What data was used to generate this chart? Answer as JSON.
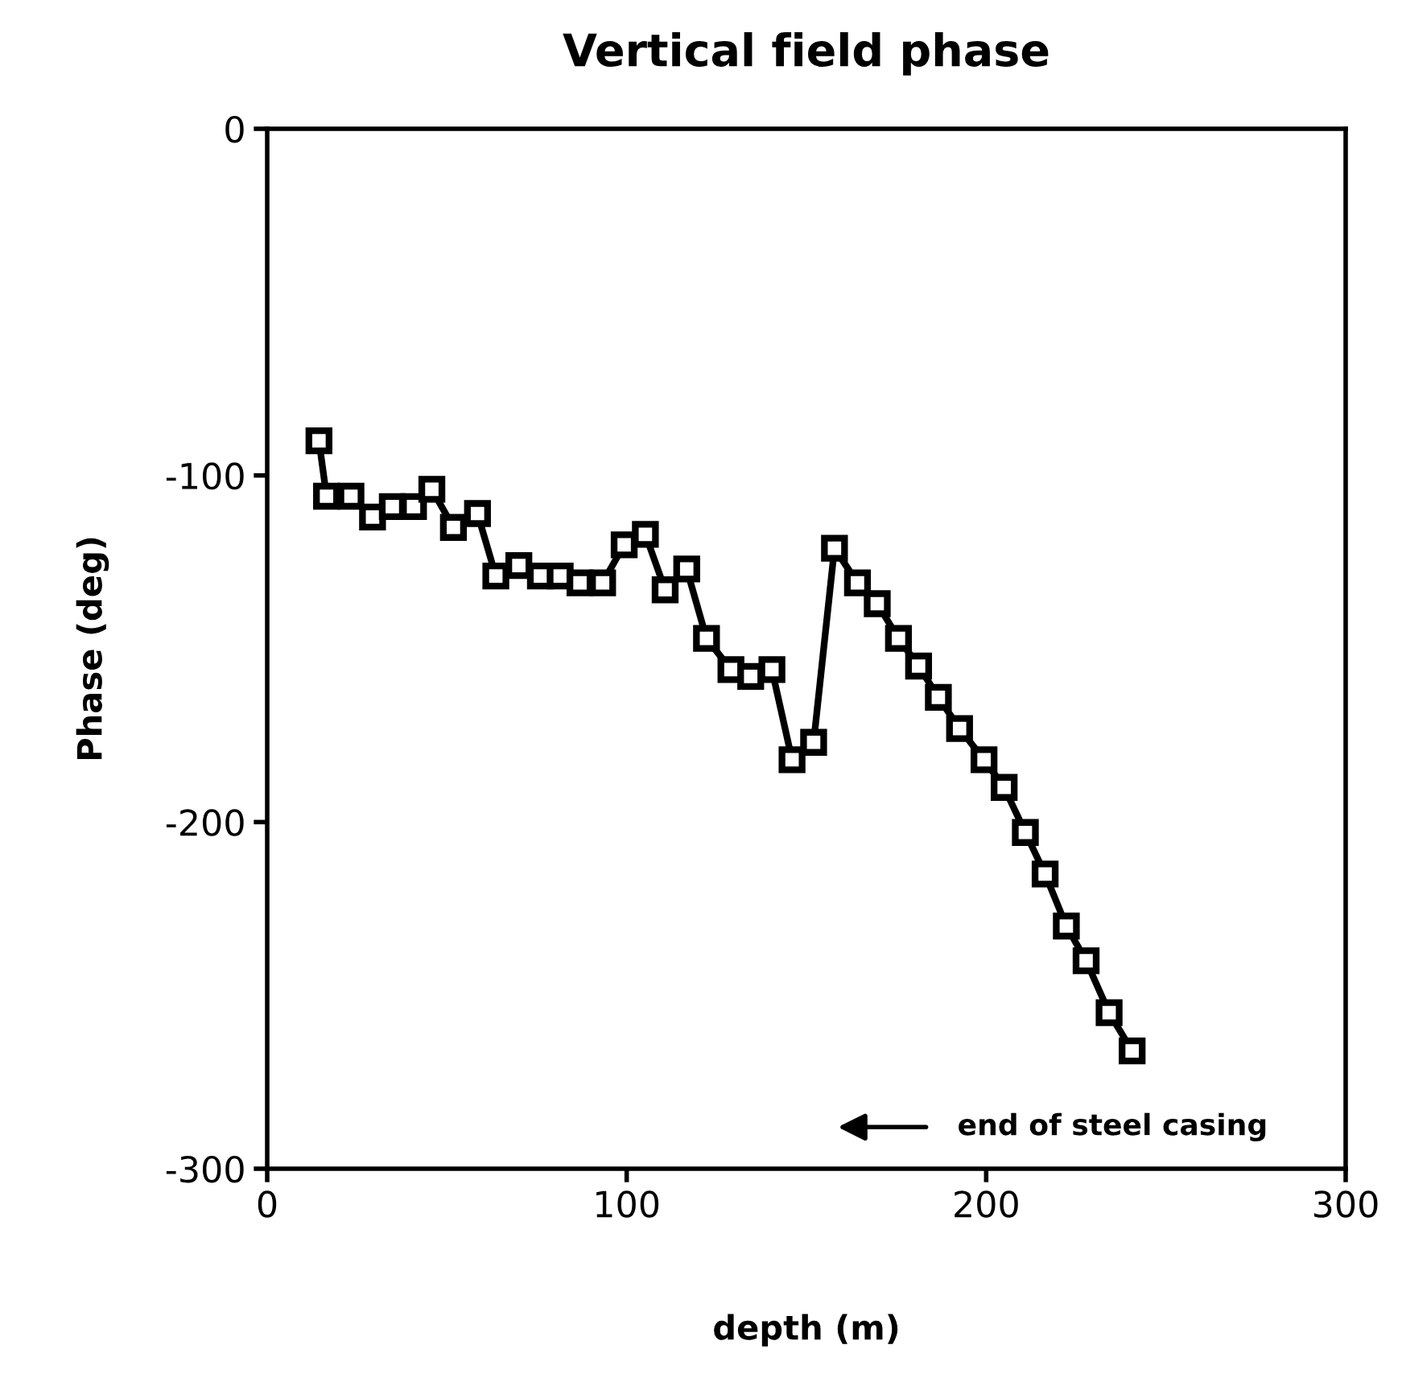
{
  "chart_data": {
    "type": "line",
    "title": "Vertical field phase",
    "xlabel": "depth (m)",
    "ylabel": "Phase (deg)",
    "x": [
      14.4,
      16.5,
      23.3,
      29.3,
      34.8,
      40.7,
      45.8,
      51.8,
      58.5,
      63.6,
      70,
      76,
      81.5,
      87,
      93.3,
      99.3,
      105.2,
      110.7,
      116.7,
      122.2,
      129,
      134.5,
      140.4,
      146,
      152,
      157.8,
      164.2,
      169.7,
      175.6,
      181.2,
      186.7,
      192.6,
      199.4,
      205,
      210.9,
      216.4,
      222.3,
      227.8,
      234.2,
      240.6
    ],
    "series": [
      {
        "color": "#000000",
        "values": [
          -90,
          -106,
          -106,
          -112,
          -109,
          -109,
          -104,
          -115,
          -111,
          -129,
          -126,
          -129,
          -129,
          -131,
          -131,
          -120,
          -117,
          -133,
          -127,
          -147,
          -156,
          -158,
          -156,
          -182,
          -177,
          -121,
          -131,
          -137,
          -147,
          -155,
          -164,
          -173,
          -182,
          -190,
          -203,
          -215,
          -230,
          -240,
          -255,
          -266
        ]
      }
    ],
    "xlim": [
      0,
      300
    ],
    "ylim": [
      -300,
      0
    ],
    "xticks": [
      0,
      100,
      200,
      300
    ],
    "yticks": [
      -300,
      -200,
      -100,
      0
    ],
    "annotations": [
      "end of steel casing"
    ],
    "grid": false,
    "legend": false,
    "marker": "square",
    "line_style": "solid"
  }
}
